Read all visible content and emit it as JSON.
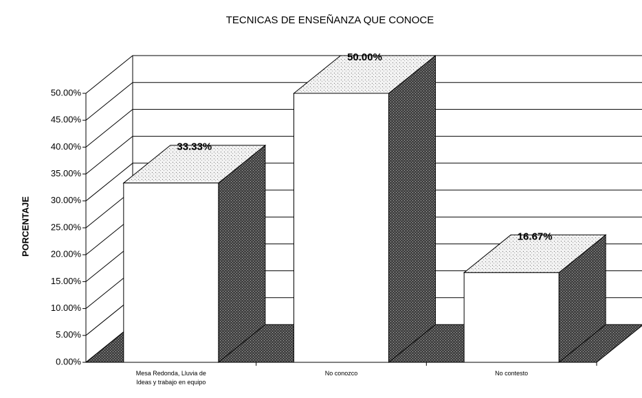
{
  "chart_data": {
    "type": "bar3d",
    "title": "TECNICAS DE ENSEÑANZA QUE CONOCE",
    "y_label": "PORCENTAJE",
    "categories": [
      "Mesa Redonda, Lluvia de Ideas y trabajo en equipo",
      "No conozco",
      "No contesto"
    ],
    "values": [
      33.33,
      50.0,
      16.67
    ],
    "value_labels": [
      "33.33%",
      "50.00%",
      "16.67%"
    ],
    "ylim": [
      0,
      50
    ],
    "yticks": [
      {
        "value": 0,
        "label": "0.00%"
      },
      {
        "value": 5,
        "label": "5.00%"
      },
      {
        "value": 10,
        "label": "10.00%"
      },
      {
        "value": 15,
        "label": "15.00%"
      },
      {
        "value": 20,
        "label": "20.00%"
      },
      {
        "value": 25,
        "label": "25.00%"
      },
      {
        "value": 30,
        "label": "30.00%"
      },
      {
        "value": 35,
        "label": "35.00%"
      },
      {
        "value": 40,
        "label": "40.00%"
      },
      {
        "value": 45,
        "label": "45.00%"
      },
      {
        "value": 50,
        "label": "50.00%"
      }
    ],
    "grid": true,
    "colors": {
      "front": "#ffffff",
      "side": "#555555",
      "top": "#e6e6e6",
      "floor": "#666666"
    }
  }
}
